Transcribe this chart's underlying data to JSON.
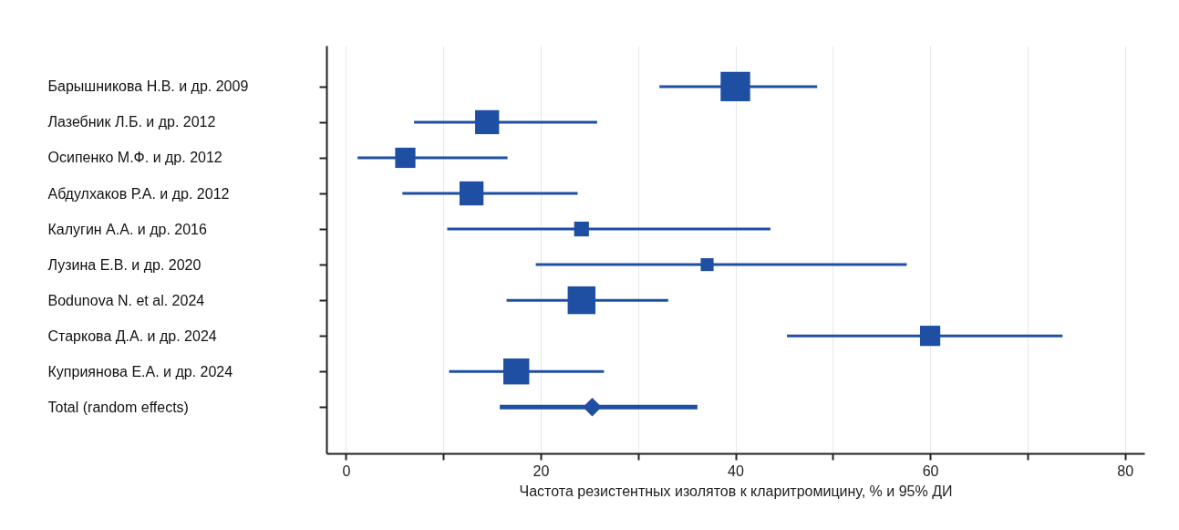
{
  "chart_data": {
    "type": "bubble",
    "orientation": "horizontal",
    "xlabel": "Частота резистентных изолятов к кларитромицину, % и 95% ДИ",
    "categories": [
      "Барышникова Н.В. и др. 2009",
      "Лазебник Л.Б. и др.  2012",
      "Осипенко М.Ф. и др.  2012",
      "Абдулхаков Р.А. и др.  2012",
      "Калугин А.А. и др.  2016",
      "Лузина Е.В. и др. 2020",
      "Bodunova N. et al. 2024",
      "Старкова Д.А. и др. 2024",
      "Куприянова Е.А. и др. 2024",
      "Total (random effects)"
    ],
    "xlim": [
      -2,
      82
    ],
    "xticks": [
      0,
      {
        "value": 10,
        "label": null
      },
      20,
      {
        "value": 30,
        "label": null
      },
      40,
      {
        "value": 50,
        "label": null
      },
      60,
      {
        "value": 70,
        "label": null
      },
      80
    ],
    "grid": "x",
    "marker": "square",
    "series": [
      {
        "color": "#1f4fa3",
        "values": [
          40.0,
          14.5,
          6.1,
          12.9,
          24.2,
          37.1,
          24.2,
          60.0,
          17.5,
          null
        ],
        "errors": [
          [
            32.2,
            48.4
          ],
          [
            7.0,
            25.8
          ],
          [
            1.2,
            16.6
          ],
          [
            5.8,
            23.8
          ],
          [
            10.4,
            43.6
          ],
          [
            19.5,
            57.6
          ],
          [
            16.5,
            33.1
          ],
          [
            45.3,
            73.6
          ],
          [
            10.6,
            26.5
          ],
          null
        ],
        "sizes": [
          1,
          0.66,
          0.47,
          0.66,
          0.25,
          0.19,
          0.88,
          0.47,
          0.77,
          null
        ]
      },
      {
        "type": "scatter",
        "marker": "diamond",
        "color": "#1f4fa3",
        "values": [
          null,
          null,
          null,
          null,
          null,
          null,
          null,
          null,
          null,
          25.3
        ],
        "errors": [
          null,
          null,
          null,
          null,
          null,
          null,
          null,
          null,
          null,
          [
            15.8,
            36.1
          ]
        ]
      }
    ]
  }
}
